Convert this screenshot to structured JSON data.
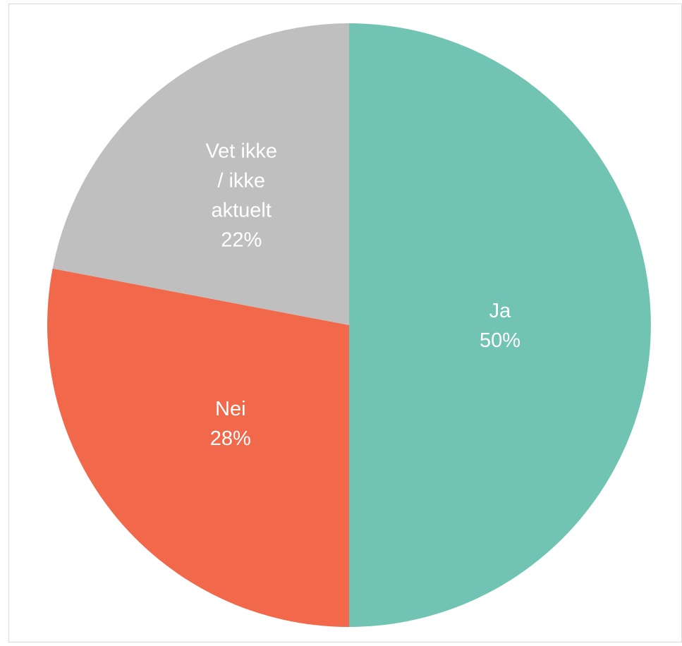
{
  "chart_data": {
    "type": "pie",
    "title": "",
    "start_angle_deg": 0,
    "direction": "clockwise",
    "slices": [
      {
        "label_lines": [
          "Ja"
        ],
        "percent_label": "50%",
        "value": 50,
        "color": "#71c3b3"
      },
      {
        "label_lines": [
          "Nei"
        ],
        "percent_label": "28%",
        "value": 28,
        "color": "#f2684b"
      },
      {
        "label_lines": [
          "Vet ikke",
          "/ ikke",
          "aktuelt"
        ],
        "percent_label": "22%",
        "value": 22,
        "color": "#bfbfbf"
      }
    ],
    "legend": "none"
  }
}
